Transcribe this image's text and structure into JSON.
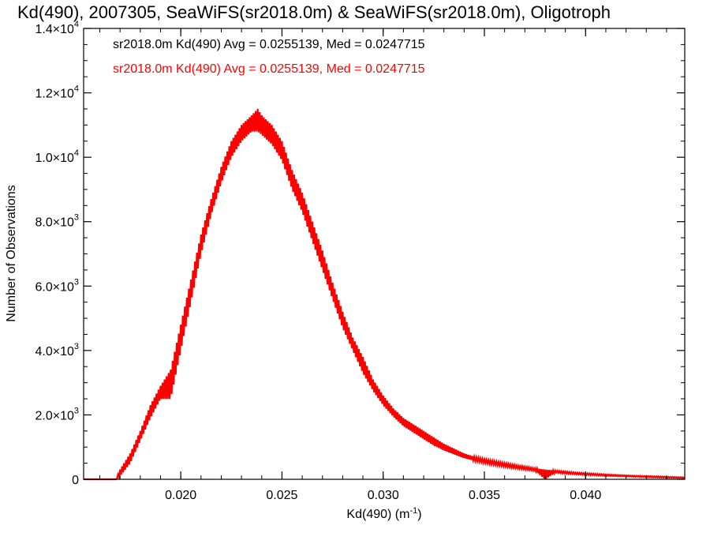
{
  "chart_data": {
    "type": "histogram-line",
    "title": "Kd(490), 2007305, SeaWiFS(sr2018.0m) & SeaWiFS(sr2018.0m), Oligotroph",
    "xlabel": "Kd(490) (m",
    "xlabel_exponent": "-1",
    "xlabel_suffix": ")",
    "ylabel": "Number of Observations",
    "xlim": [
      0.0152,
      0.0449
    ],
    "ylim": [
      0,
      14000
    ],
    "x_ticks": [
      {
        "value": 0.02,
        "label": "0.020"
      },
      {
        "value": 0.025,
        "label": "0.025"
      },
      {
        "value": 0.03,
        "label": "0.030"
      },
      {
        "value": 0.035,
        "label": "0.035"
      },
      {
        "value": 0.04,
        "label": "0.040"
      }
    ],
    "y_ticks": [
      {
        "value": 0,
        "mantissa": "0",
        "exponent": ""
      },
      {
        "value": 2000,
        "mantissa": "2.0×10",
        "exponent": "3"
      },
      {
        "value": 4000,
        "mantissa": "4.0×10",
        "exponent": "3"
      },
      {
        "value": 6000,
        "mantissa": "6.0×10",
        "exponent": "3"
      },
      {
        "value": 8000,
        "mantissa": "8.0×10",
        "exponent": "3"
      },
      {
        "value": 10000,
        "mantissa": "1.0×10",
        "exponent": "4"
      },
      {
        "value": 12000,
        "mantissa": "1.2×10",
        "exponent": "4"
      },
      {
        "value": 14000,
        "mantissa": "1.4×10",
        "exponent": "4"
      }
    ],
    "series": [
      {
        "name": "sr2018.0m Kd(490) Avg = 0.0255139, Med = 0.0247715",
        "color": "#000000",
        "peaks": [
          [
            0.0152,
            0
          ],
          [
            0.0168,
            0
          ],
          [
            0.017,
            300
          ],
          [
            0.0175,
            800
          ],
          [
            0.018,
            1500
          ],
          [
            0.0185,
            2300
          ],
          [
            0.019,
            2900
          ],
          [
            0.0195,
            3400
          ],
          [
            0.02,
            4800
          ],
          [
            0.0205,
            6200
          ],
          [
            0.021,
            7600
          ],
          [
            0.0215,
            8700
          ],
          [
            0.022,
            9700
          ],
          [
            0.0225,
            10500
          ],
          [
            0.023,
            11000
          ],
          [
            0.0235,
            11300
          ],
          [
            0.0238,
            11500
          ],
          [
            0.024,
            11300
          ],
          [
            0.0245,
            11000
          ],
          [
            0.025,
            10500
          ],
          [
            0.0255,
            9600
          ],
          [
            0.026,
            8900
          ],
          [
            0.0265,
            8000
          ],
          [
            0.027,
            7100
          ],
          [
            0.0275,
            6100
          ],
          [
            0.028,
            5200
          ],
          [
            0.0285,
            4400
          ],
          [
            0.029,
            3800
          ],
          [
            0.0295,
            3100
          ],
          [
            0.03,
            2600
          ],
          [
            0.0305,
            2200
          ],
          [
            0.031,
            1900
          ],
          [
            0.0315,
            1700
          ],
          [
            0.032,
            1500
          ],
          [
            0.0325,
            1300
          ],
          [
            0.033,
            1100
          ],
          [
            0.0335,
            950
          ],
          [
            0.034,
            800
          ],
          [
            0.0345,
            700
          ],
          [
            0.035,
            620
          ],
          [
            0.0355,
            560
          ],
          [
            0.036,
            500
          ],
          [
            0.0365,
            440
          ],
          [
            0.037,
            390
          ],
          [
            0.0375,
            340
          ],
          [
            0.038,
            300
          ],
          [
            0.0385,
            270
          ],
          [
            0.039,
            240
          ],
          [
            0.0395,
            210
          ],
          [
            0.04,
            190
          ],
          [
            0.041,
            150
          ],
          [
            0.042,
            120
          ],
          [
            0.043,
            100
          ],
          [
            0.044,
            80
          ],
          [
            0.0449,
            60
          ]
        ],
        "dips": [
          [
            0.0152,
            0
          ],
          [
            0.0168,
            0
          ],
          [
            0.017,
            100
          ],
          [
            0.0175,
            500
          ],
          [
            0.018,
            1200
          ],
          [
            0.0185,
            1900
          ],
          [
            0.019,
            2500
          ],
          [
            0.0195,
            2500
          ],
          [
            0.02,
            4000
          ],
          [
            0.0205,
            5500
          ],
          [
            0.021,
            7000
          ],
          [
            0.0215,
            8200
          ],
          [
            0.022,
            9200
          ],
          [
            0.0225,
            10000
          ],
          [
            0.023,
            10500
          ],
          [
            0.0235,
            10800
          ],
          [
            0.0238,
            10800
          ],
          [
            0.024,
            10700
          ],
          [
            0.0245,
            10400
          ],
          [
            0.025,
            9900
          ],
          [
            0.0255,
            9000
          ],
          [
            0.026,
            8300
          ],
          [
            0.0265,
            7400
          ],
          [
            0.027,
            6500
          ],
          [
            0.0275,
            5600
          ],
          [
            0.028,
            4700
          ],
          [
            0.0285,
            4000
          ],
          [
            0.029,
            3300
          ],
          [
            0.0295,
            2750
          ],
          [
            0.03,
            2300
          ],
          [
            0.0305,
            1950
          ],
          [
            0.031,
            1650
          ],
          [
            0.0315,
            1450
          ],
          [
            0.032,
            1250
          ],
          [
            0.0325,
            1050
          ],
          [
            0.033,
            900
          ],
          [
            0.0335,
            780
          ],
          [
            0.034,
            660
          ],
          [
            0.0345,
            580
          ],
          [
            0.035,
            510
          ],
          [
            0.0355,
            450
          ],
          [
            0.036,
            400
          ],
          [
            0.0365,
            350
          ],
          [
            0.037,
            310
          ],
          [
            0.0375,
            270
          ],
          [
            0.038,
            0
          ],
          [
            0.0385,
            210
          ],
          [
            0.039,
            180
          ],
          [
            0.0395,
            160
          ],
          [
            0.04,
            140
          ],
          [
            0.041,
            110
          ],
          [
            0.042,
            90
          ],
          [
            0.043,
            70
          ],
          [
            0.044,
            50
          ],
          [
            0.0449,
            40
          ]
        ]
      },
      {
        "name": "sr2018.0m Kd(490) Avg = 0.0255139, Med = 0.0247715",
        "color": "#ff0000",
        "peaks": [
          [
            0.0152,
            0
          ],
          [
            0.0168,
            0
          ],
          [
            0.017,
            300
          ],
          [
            0.0175,
            800
          ],
          [
            0.018,
            1500
          ],
          [
            0.0185,
            2300
          ],
          [
            0.019,
            2900
          ],
          [
            0.0195,
            3400
          ],
          [
            0.02,
            4800
          ],
          [
            0.0205,
            6200
          ],
          [
            0.021,
            7600
          ],
          [
            0.0215,
            8700
          ],
          [
            0.022,
            9700
          ],
          [
            0.0225,
            10500
          ],
          [
            0.023,
            11000
          ],
          [
            0.0235,
            11300
          ],
          [
            0.0238,
            11500
          ],
          [
            0.024,
            11300
          ],
          [
            0.0245,
            11000
          ],
          [
            0.025,
            10500
          ],
          [
            0.0255,
            9600
          ],
          [
            0.026,
            8900
          ],
          [
            0.0265,
            8000
          ],
          [
            0.027,
            7100
          ],
          [
            0.0275,
            6100
          ],
          [
            0.028,
            5200
          ],
          [
            0.0285,
            4400
          ],
          [
            0.029,
            3800
          ],
          [
            0.0295,
            3100
          ],
          [
            0.03,
            2600
          ],
          [
            0.0305,
            2200
          ],
          [
            0.031,
            1900
          ],
          [
            0.0315,
            1700
          ],
          [
            0.032,
            1500
          ],
          [
            0.0325,
            1300
          ],
          [
            0.033,
            1100
          ],
          [
            0.0335,
            950
          ],
          [
            0.034,
            800
          ],
          [
            0.0345,
            700
          ],
          [
            0.035,
            620
          ],
          [
            0.0355,
            560
          ],
          [
            0.036,
            500
          ],
          [
            0.0365,
            440
          ],
          [
            0.037,
            390
          ],
          [
            0.0375,
            340
          ],
          [
            0.038,
            300
          ],
          [
            0.0385,
            270
          ],
          [
            0.039,
            240
          ],
          [
            0.0395,
            210
          ],
          [
            0.04,
            190
          ],
          [
            0.041,
            150
          ],
          [
            0.042,
            120
          ],
          [
            0.043,
            100
          ],
          [
            0.044,
            80
          ],
          [
            0.0449,
            60
          ]
        ],
        "dips": [
          [
            0.0152,
            0
          ],
          [
            0.0168,
            0
          ],
          [
            0.017,
            100
          ],
          [
            0.0175,
            500
          ],
          [
            0.018,
            1200
          ],
          [
            0.0185,
            1900
          ],
          [
            0.019,
            2500
          ],
          [
            0.0195,
            2500
          ],
          [
            0.02,
            4000
          ],
          [
            0.0205,
            5500
          ],
          [
            0.021,
            7000
          ],
          [
            0.0215,
            8200
          ],
          [
            0.022,
            9200
          ],
          [
            0.0225,
            10000
          ],
          [
            0.023,
            10500
          ],
          [
            0.0235,
            10800
          ],
          [
            0.0238,
            10800
          ],
          [
            0.024,
            10700
          ],
          [
            0.0245,
            10400
          ],
          [
            0.025,
            9900
          ],
          [
            0.0255,
            9000
          ],
          [
            0.026,
            8300
          ],
          [
            0.0265,
            7400
          ],
          [
            0.027,
            6500
          ],
          [
            0.0275,
            5600
          ],
          [
            0.028,
            4700
          ],
          [
            0.0285,
            4000
          ],
          [
            0.029,
            3300
          ],
          [
            0.0295,
            2750
          ],
          [
            0.03,
            2300
          ],
          [
            0.0305,
            1950
          ],
          [
            0.031,
            1650
          ],
          [
            0.0315,
            1450
          ],
          [
            0.032,
            1250
          ],
          [
            0.0325,
            1050
          ],
          [
            0.033,
            900
          ],
          [
            0.0335,
            780
          ],
          [
            0.034,
            660
          ],
          [
            0.0345,
            580
          ],
          [
            0.035,
            510
          ],
          [
            0.0355,
            450
          ],
          [
            0.036,
            400
          ],
          [
            0.0365,
            350
          ],
          [
            0.037,
            310
          ],
          [
            0.0375,
            270
          ],
          [
            0.038,
            0
          ],
          [
            0.0385,
            210
          ],
          [
            0.039,
            180
          ],
          [
            0.0395,
            160
          ],
          [
            0.04,
            140
          ],
          [
            0.041,
            110
          ],
          [
            0.042,
            90
          ],
          [
            0.043,
            70
          ],
          [
            0.044,
            50
          ],
          [
            0.0449,
            40
          ]
        ]
      }
    ],
    "legend": [
      {
        "text": "sr2018.0m Kd(490) Avg = 0.0255139, Med = 0.0247715",
        "color": "#000000"
      },
      {
        "text": "sr2018.0m Kd(490) Avg = 0.0255139, Med = 0.0247715",
        "color": "#ff0000"
      }
    ],
    "legend_position": "top-left",
    "grid": false
  }
}
